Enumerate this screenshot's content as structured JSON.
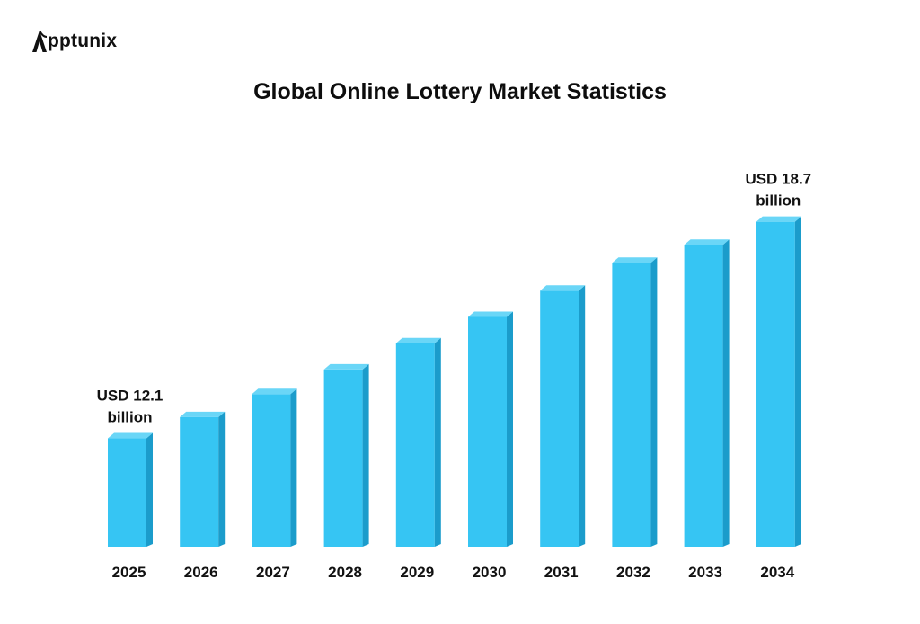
{
  "brand": {
    "logo_text": "pptunix",
    "logo_icon": "apptunix-a-logo"
  },
  "colors": {
    "bar_front": "#36c5f3",
    "bar_side": "#1b9ccb",
    "bar_top": "#6ad6f7",
    "text": "#111111"
  },
  "chart_data": {
    "type": "bar",
    "title": "Global Online Lottery Market Statistics",
    "xlabel": "",
    "ylabel": "",
    "categories": [
      "2025",
      "2026",
      "2027",
      "2028",
      "2029",
      "2030",
      "2031",
      "2032",
      "2033",
      "2034"
    ],
    "values": [
      12.1,
      12.75,
      13.45,
      14.2,
      15.0,
      15.8,
      16.6,
      17.45,
      18.0,
      18.7
    ],
    "ylim": [
      8.8,
      19.3
    ],
    "grid": false,
    "legend": "none",
    "annotations": [
      {
        "index": 0,
        "line1": "USD 12.1",
        "line2": "billion"
      },
      {
        "index": 9,
        "line1": "USD 18.7",
        "line2": "billion"
      }
    ]
  }
}
